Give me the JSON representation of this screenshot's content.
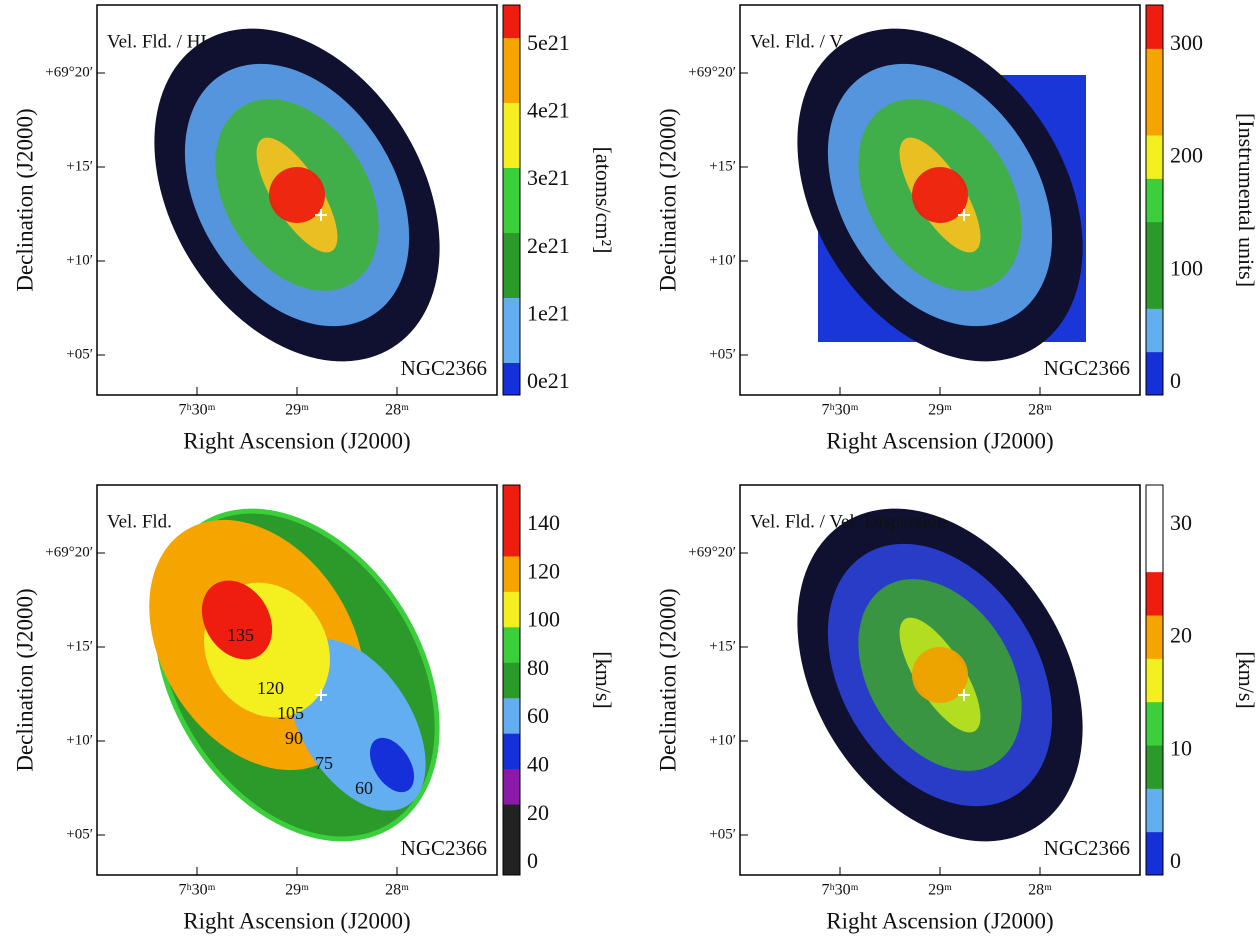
{
  "panels": [
    {
      "title": "Vel. Fld. / HI",
      "object": "NGC2366",
      "y_label": "Declination (J2000)",
      "x_label": "Right Ascension (J2000)",
      "y_ticks": [
        "+69°20′",
        "+15′",
        "+10′",
        "+05′"
      ],
      "x_ticks": [
        "7ʰ30ᵐ",
        "29ᵐ",
        "28ᵐ"
      ],
      "colorbar_label": "[atoms/cm²]",
      "colorbar_ticks": [
        "5e21",
        "4e21",
        "3e21",
        "2e21",
        "1e21",
        "0e21"
      ]
    },
    {
      "title": "Vel. Fld. / V",
      "object": "NGC2366",
      "y_label": "Declination (J2000)",
      "x_label": "Right Ascension (J2000)",
      "y_ticks": [
        "+69°20′",
        "+15′",
        "+10′",
        "+05′"
      ],
      "x_ticks": [
        "7ʰ30ᵐ",
        "29ᵐ",
        "28ᵐ"
      ],
      "colorbar_label": "[Instrumental units]",
      "colorbar_ticks": [
        "300",
        "200",
        "100",
        "0"
      ]
    },
    {
      "title": "Vel. Fld.",
      "object": "NGC2366",
      "y_label": "Declination (J2000)",
      "x_label": "Right Ascension (J2000)",
      "y_ticks": [
        "+69°20′",
        "+15′",
        "+10′",
        "+05′"
      ],
      "x_ticks": [
        "7ʰ30ᵐ",
        "29ᵐ",
        "28ᵐ"
      ],
      "colorbar_label": "[km/s]",
      "colorbar_ticks": [
        "140",
        "120",
        "100",
        "80",
        "60",
        "40",
        "20",
        "0"
      ],
      "contour_labels": [
        "135",
        "120",
        "105",
        "90",
        "75",
        "60"
      ]
    },
    {
      "title": "Vel. Fld. / Vel. Dispersion",
      "object": "NGC2366",
      "y_label": "Declination (J2000)",
      "x_label": "Right Ascension (J2000)",
      "y_ticks": [
        "+69°20′",
        "+15′",
        "+10′",
        "+05′"
      ],
      "x_ticks": [
        "7ʰ30ᵐ",
        "29ᵐ",
        "28ᵐ"
      ],
      "colorbar_label": "[km/s]",
      "colorbar_ticks": [
        "30",
        "20",
        "10",
        "0"
      ]
    }
  ]
}
